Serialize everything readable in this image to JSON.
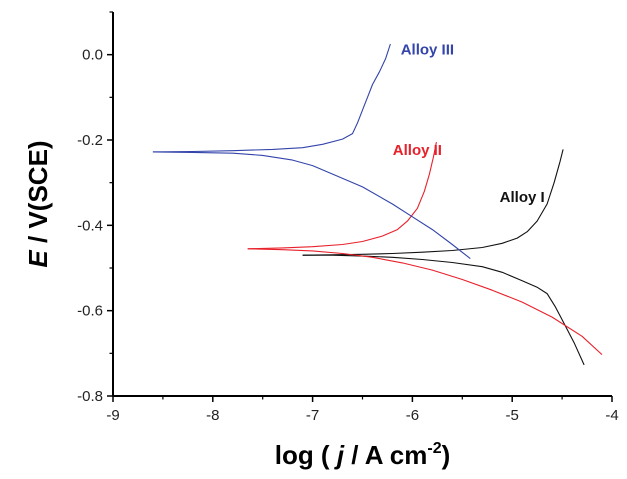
{
  "chart_data": {
    "type": "line",
    "xlabel": {
      "prefix": "log ( ",
      "var": "j",
      "mid": " / A cm",
      "sup": "-2",
      "suffix": ")"
    },
    "ylabel": {
      "var": "E",
      "rest": " / V(SCE)"
    },
    "xlim": [
      -9,
      -4
    ],
    "ylim": [
      -0.8,
      0.1
    ],
    "xticks": [
      -9,
      -8,
      -7,
      -6,
      -5,
      -4
    ],
    "xtick_labels": [
      "-9",
      "-8",
      "-7",
      "-6",
      "-5",
      "-4"
    ],
    "yticks": [
      -0.8,
      -0.6,
      -0.4,
      -0.2,
      0.0
    ],
    "ytick_labels": [
      "-0.8",
      "-0.6",
      "-0.4",
      "-0.2",
      "0.0"
    ],
    "grid": false,
    "series": [
      {
        "name": "Alloy I",
        "color": "#111111",
        "branches": [
          [
            [
              -7.1,
              -0.47
            ],
            [
              -6.8,
              -0.469
            ],
            [
              -6.5,
              -0.468
            ],
            [
              -6.2,
              -0.466
            ],
            [
              -5.9,
              -0.463
            ],
            [
              -5.6,
              -0.459
            ],
            [
              -5.3,
              -0.452
            ],
            [
              -5.1,
              -0.442
            ],
            [
              -4.95,
              -0.43
            ],
            [
              -4.85,
              -0.415
            ],
            [
              -4.75,
              -0.39
            ],
            [
              -4.65,
              -0.35
            ],
            [
              -4.58,
              -0.3
            ],
            [
              -4.52,
              -0.25
            ],
            [
              -4.49,
              -0.222
            ]
          ],
          [
            [
              -7.1,
              -0.47
            ],
            [
              -6.8,
              -0.47
            ],
            [
              -6.5,
              -0.472
            ],
            [
              -6.2,
              -0.475
            ],
            [
              -5.9,
              -0.48
            ],
            [
              -5.6,
              -0.487
            ],
            [
              -5.3,
              -0.497
            ],
            [
              -5.1,
              -0.51
            ],
            [
              -4.9,
              -0.53
            ],
            [
              -4.75,
              -0.545
            ],
            [
              -4.65,
              -0.56
            ],
            [
              -4.57,
              -0.59
            ],
            [
              -4.48,
              -0.63
            ],
            [
              -4.38,
              -0.675
            ],
            [
              -4.28,
              -0.727
            ]
          ]
        ]
      },
      {
        "name": "Alloy II",
        "color": "#e8202a",
        "branches": [
          [
            [
              -7.65,
              -0.455
            ],
            [
              -7.3,
              -0.453
            ],
            [
              -7.0,
              -0.45
            ],
            [
              -6.7,
              -0.445
            ],
            [
              -6.5,
              -0.438
            ],
            [
              -6.3,
              -0.425
            ],
            [
              -6.15,
              -0.41
            ],
            [
              -6.05,
              -0.39
            ],
            [
              -5.95,
              -0.36
            ],
            [
              -5.88,
              -0.32
            ],
            [
              -5.83,
              -0.28
            ],
            [
              -5.79,
              -0.24
            ],
            [
              -5.76,
              -0.205
            ]
          ],
          [
            [
              -7.65,
              -0.455
            ],
            [
              -7.3,
              -0.457
            ],
            [
              -7.0,
              -0.46
            ],
            [
              -6.7,
              -0.466
            ],
            [
              -6.4,
              -0.475
            ],
            [
              -6.1,
              -0.488
            ],
            [
              -5.8,
              -0.505
            ],
            [
              -5.5,
              -0.527
            ],
            [
              -5.2,
              -0.552
            ],
            [
              -4.9,
              -0.58
            ],
            [
              -4.6,
              -0.615
            ],
            [
              -4.3,
              -0.66
            ],
            [
              -4.1,
              -0.703
            ]
          ]
        ]
      },
      {
        "name": "Alloy III",
        "color": "#3344aa",
        "branches": [
          [
            [
              -8.6,
              -0.228
            ],
            [
              -8.2,
              -0.227
            ],
            [
              -7.8,
              -0.225
            ],
            [
              -7.4,
              -0.222
            ],
            [
              -7.1,
              -0.218
            ],
            [
              -6.9,
              -0.21
            ],
            [
              -6.7,
              -0.198
            ],
            [
              -6.6,
              -0.185
            ],
            [
              -6.55,
              -0.16
            ],
            [
              -6.5,
              -0.13
            ],
            [
              -6.45,
              -0.1
            ],
            [
              -6.4,
              -0.07
            ],
            [
              -6.33,
              -0.04
            ],
            [
              -6.27,
              -0.01
            ],
            [
              -6.22,
              0.025
            ]
          ],
          [
            [
              -8.6,
              -0.228
            ],
            [
              -8.2,
              -0.229
            ],
            [
              -7.8,
              -0.231
            ],
            [
              -7.5,
              -0.236
            ],
            [
              -7.2,
              -0.247
            ],
            [
              -7.0,
              -0.26
            ],
            [
              -6.8,
              -0.28
            ],
            [
              -6.5,
              -0.31
            ],
            [
              -6.2,
              -0.35
            ],
            [
              -6.0,
              -0.38
            ],
            [
              -5.8,
              -0.41
            ],
            [
              -5.6,
              -0.445
            ],
            [
              -5.42,
              -0.478
            ]
          ]
        ]
      }
    ],
    "annotations": [
      {
        "text": "Alloy III",
        "color": "#3344aa",
        "x": -5.85,
        "y": 0.0
      },
      {
        "text": "Alloy II",
        "color": "#e8202a",
        "x": -5.95,
        "y": -0.235
      },
      {
        "text": "Alloy I",
        "color": "#111111",
        "x": -4.9,
        "y": -0.345
      }
    ]
  }
}
